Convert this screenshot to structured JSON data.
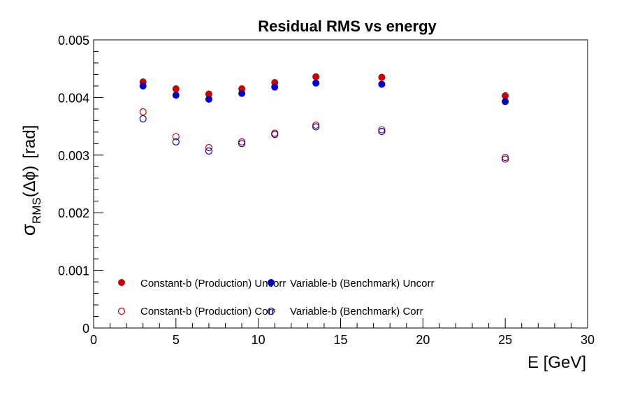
{
  "chart_data": {
    "type": "scatter",
    "title": "Residual RMS vs energy",
    "xlabel": "E  [GeV]",
    "ylabel": {
      "sigma": "σ",
      "subscript": "RMS",
      "argument": "(Δϕ)",
      "unit": "[rad]"
    },
    "xlim": [
      0,
      30
    ],
    "ylim": [
      0,
      0.005
    ],
    "xticks": [
      "0",
      "5",
      "10",
      "15",
      "20",
      "25",
      "30"
    ],
    "yticks": [
      "0",
      "0.001",
      "0.002",
      "0.003",
      "0.004",
      "0.005"
    ],
    "grid": false,
    "legend_position": "bottom-left",
    "x": [
      3,
      5,
      7,
      9,
      11,
      13.5,
      17.5,
      25
    ],
    "series": [
      {
        "name": "Constant-b (Production) Uncorr",
        "color": "#cc0000",
        "marker": "filled-circle",
        "values": [
          0.00427,
          0.00415,
          0.00406,
          0.00415,
          0.00426,
          0.00436,
          0.00435,
          0.00403
        ]
      },
      {
        "name": "Variable-b (Benchmark) Uncorr",
        "color": "#0000cc",
        "marker": "filled-circle",
        "values": [
          0.0042,
          0.00404,
          0.00397,
          0.00407,
          0.00418,
          0.00425,
          0.00423,
          0.00393
        ]
      },
      {
        "name": "Constant-b (Production) Corr",
        "color": "#cc0000",
        "marker": "open-circle",
        "values": [
          0.00375,
          0.00332,
          0.00313,
          0.00323,
          0.00338,
          0.00352,
          0.00344,
          0.00296
        ]
      },
      {
        "name": "Variable-b (Benchmark) Corr",
        "color": "#0000cc",
        "marker": "open-circle",
        "values": [
          0.00363,
          0.00323,
          0.00307,
          0.0032,
          0.00336,
          0.00349,
          0.00341,
          0.00293
        ]
      }
    ]
  }
}
